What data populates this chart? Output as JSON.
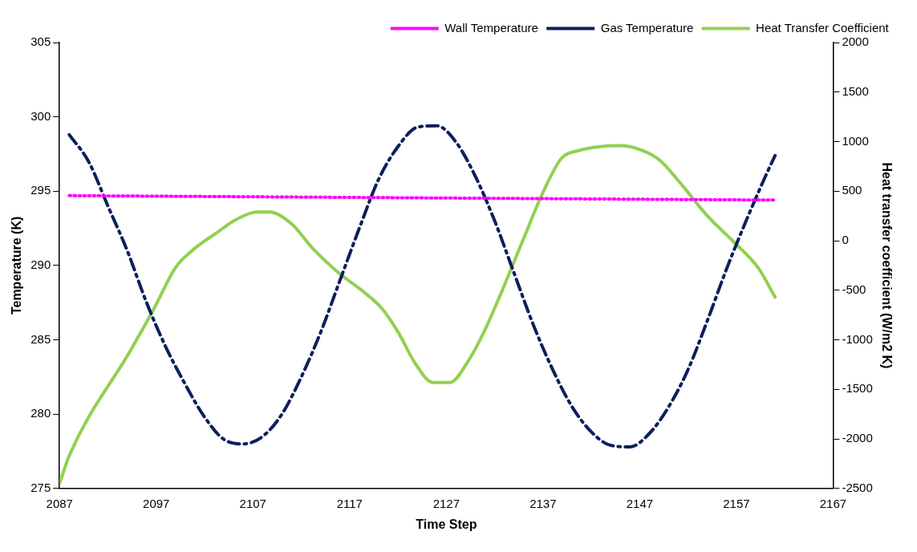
{
  "chart_data": {
    "type": "line",
    "xlabel": "Time Step",
    "ylabel": "Temperature (K)",
    "y2label": "Heat transfer coefficient (W/m2 K)",
    "xlim": [
      2087,
      2167
    ],
    "xticks": [
      2087,
      2097,
      2107,
      2117,
      2127,
      2137,
      2147,
      2157,
      2167
    ],
    "ylim": [
      275,
      305
    ],
    "yticks": [
      275,
      280,
      285,
      290,
      295,
      300,
      305
    ],
    "y2lim": [
      -2500,
      2000
    ],
    "y2ticks": [
      -2500,
      -2000,
      -1500,
      -1000,
      -500,
      0,
      500,
      1000,
      1500,
      2000
    ],
    "grid": false,
    "legend": "top right",
    "marker": "none",
    "series": [
      {
        "name": "Wall Temperature",
        "color": "#ff00ff",
        "line_style": "dotted",
        "x": [
          2088,
          2161
        ],
        "values": [
          294.7,
          294.4
        ]
      },
      {
        "name": "Gas Temperature",
        "color": "#0d1f5c",
        "line_style": "dashed",
        "x": [
          2088,
          2090,
          2092,
          2094,
          2096,
          2098,
          2100,
          2102,
          2104,
          2106,
          2108,
          2110,
          2112,
          2114,
          2116,
          2118,
          2120,
          2122,
          2124,
          2126,
          2128,
          2130,
          2132,
          2134,
          2136,
          2138,
          2140,
          2142,
          2144,
          2146,
          2148,
          2150,
          2152,
          2154,
          2156,
          2158,
          2160,
          2161
        ],
        "values": [
          298.8,
          297,
          294,
          291,
          287.5,
          284.5,
          282,
          279.8,
          278.3,
          278,
          278.5,
          280,
          282.5,
          285.5,
          289,
          292.5,
          295.8,
          298,
          299.3,
          299.4,
          298.3,
          296,
          293,
          289.5,
          286,
          283,
          280.5,
          278.8,
          277.9,
          277.8,
          278.7,
          280.5,
          283,
          286.3,
          289.8,
          293,
          296,
          297.4
        ]
      },
      {
        "name": "Heat Transfer Coefficient",
        "color": "#92d050",
        "line_style": "solid",
        "axis": "y2",
        "x": [
          2087,
          2088,
          2094.5,
          2096.8,
          2099,
          2100.7,
          2103.4,
          2105.2,
          2107.4,
          2108.7,
          2111,
          2113.2,
          2115.8,
          2118.5,
          2120.3,
          2122,
          2123.8,
          2125.6,
          2127.4,
          2129.1,
          2130.9,
          2132.7,
          2134.9,
          2137.1,
          2138.9,
          2140.7,
          2142.9,
          2145.1,
          2147.3,
          2149.1,
          2151.3,
          2154,
          2156.6,
          2159.3,
          2161
        ],
        "values": [
          -2450,
          -2170,
          -1080,
          -680,
          -270,
          -100,
          90,
          210,
          290,
          290,
          170,
          -80,
          -320,
          -520,
          -680,
          -920,
          -1240,
          -1430,
          -1430,
          -1240,
          -920,
          -520,
          0,
          510,
          830,
          910,
          950,
          960,
          910,
          810,
          570,
          250,
          0,
          -280,
          -570
        ]
      }
    ]
  }
}
